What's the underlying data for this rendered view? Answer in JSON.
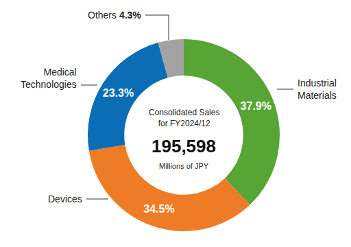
{
  "chart_data": {
    "type": "pie",
    "categories": [
      "Industrial Materials",
      "Devices",
      "Medical Technologies",
      "Others"
    ],
    "values": [
      37.9,
      34.5,
      23.3,
      4.3
    ],
    "value_labels": [
      "37.9%",
      "34.5%",
      "23.3%",
      "4.3%"
    ],
    "colors": [
      "#57a535",
      "#ee7b26",
      "#0a6db6",
      "#a3a3a3"
    ],
    "data_labels": true,
    "center_label": [
      "Consolidated Sales",
      "for FY2024/12"
    ],
    "total": {
      "value": 195598,
      "label": "195,598"
    },
    "unit": "Millions of JPY"
  }
}
